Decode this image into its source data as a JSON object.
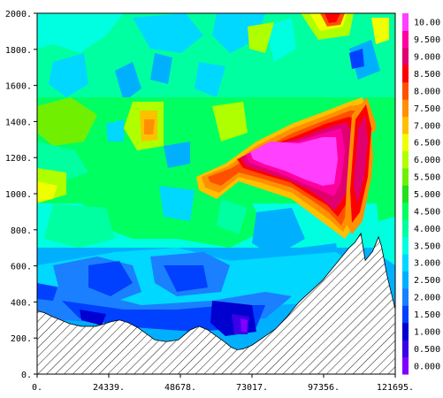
{
  "chart_data": {
    "type": "heatmap",
    "title": "",
    "xlabel": "",
    "ylabel": "",
    "xlim": [
      0,
      121695
    ],
    "ylim": [
      0,
      2000
    ],
    "x_ticks": [
      "0.",
      "24339.",
      "48678.",
      "73017.",
      "97356.",
      "121695."
    ],
    "y_ticks": [
      "0.",
      "200.",
      "400.",
      "600.",
      "800.",
      "1000.",
      "1200.",
      "1400.",
      "1600.",
      "1800.",
      "2000."
    ],
    "legend": {
      "placement": "right",
      "levels": [
        "0.000",
        "0.500",
        "1.000",
        "1.500",
        "2.000",
        "2.500",
        "3.000",
        "3.500",
        "4.000",
        "4.500",
        "5.000",
        "5.500",
        "6.000",
        "6.500",
        "7.000",
        "7.500",
        "8.000",
        "8.500",
        "9.000",
        "9.500",
        "10.00"
      ],
      "colors": [
        "#8000ff",
        "#3a00e8",
        "#0000d0",
        "#0040ff",
        "#1a80ff",
        "#00b0ff",
        "#00d8ff",
        "#00ffe0",
        "#00ffa0",
        "#00ff60",
        "#20e020",
        "#70f000",
        "#b0ff00",
        "#f0ff00",
        "#ffc000",
        "#ff9000",
        "#ff5000",
        "#ff0000",
        "#e00070",
        "#ff00a0",
        "#ff40ff"
      ]
    },
    "terrain_profile": {
      "x": [
        0,
        2500,
        5000,
        8000,
        11000,
        15000,
        20000,
        25000,
        28000,
        31000,
        34000,
        37000,
        40000,
        44000,
        48000,
        52000,
        55000,
        58000,
        61000,
        64000,
        66000,
        68000,
        70000,
        73000,
        77000,
        81000,
        85000,
        89000,
        93000,
        97000,
        100000,
        102000,
        104000,
        106000,
        108000,
        110000,
        111500,
        114000,
        116000,
        117000,
        119000,
        121695
      ],
      "y": [
        350,
        340,
        320,
        300,
        280,
        265,
        265,
        290,
        300,
        285,
        260,
        225,
        190,
        180,
        190,
        245,
        265,
        245,
        210,
        175,
        148,
        135,
        140,
        160,
        205,
        250,
        320,
        400,
        460,
        520,
        580,
        620,
        660,
        700,
        730,
        780,
        630,
        680,
        760,
        710,
        540,
        360
      ]
    },
    "fields": [
      {
        "name": "magenta core",
        "level": 10.0,
        "x": 82000,
        "y": 1130
      },
      {
        "name": "red ridge",
        "level": 8.0,
        "x": 104000,
        "y": 1200
      },
      {
        "name": "orange patch",
        "level": 6.5,
        "x": 40000,
        "y": 1330
      },
      {
        "name": "red patch top",
        "level": 8.5,
        "x": 100000,
        "y": 1950
      },
      {
        "name": "deep blue low",
        "level": 0.5,
        "x": 62000,
        "y": 280
      }
    ]
  }
}
